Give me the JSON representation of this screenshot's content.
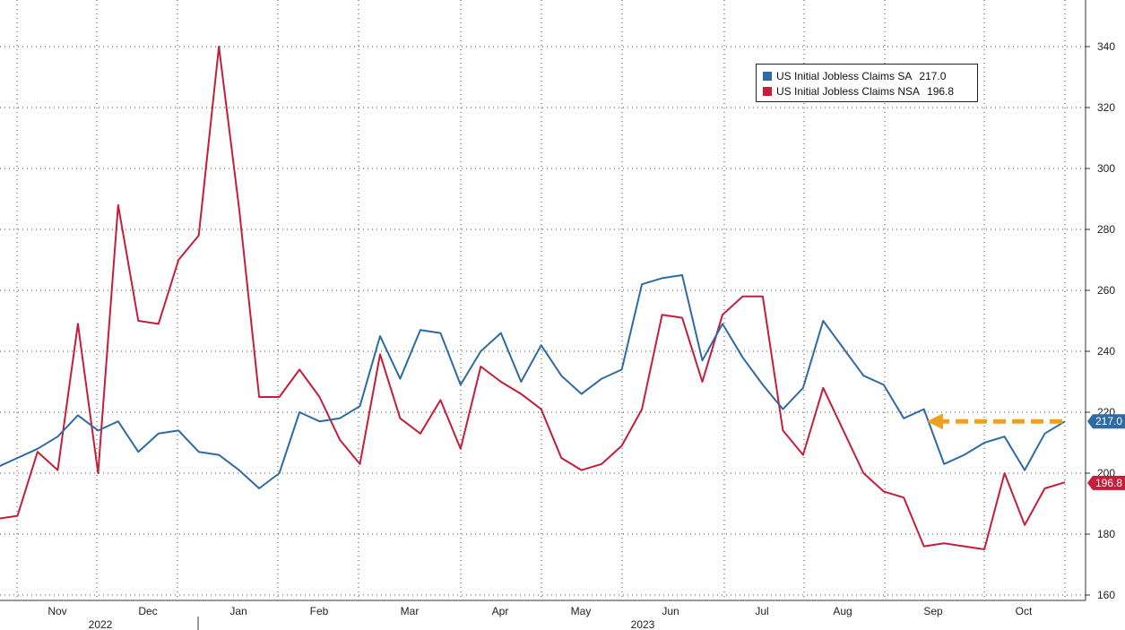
{
  "chart_data": {
    "type": "line",
    "x_axis": {
      "month_labels": [
        "Nov",
        "Dec",
        "Jan",
        "Feb",
        "Mar",
        "Apr",
        "May",
        "Jun",
        "Jul",
        "Aug",
        "Sep",
        "Oct"
      ],
      "year_labels": [
        "2022",
        "2023"
      ]
    },
    "y_axis": {
      "ylim": [
        158,
        355
      ],
      "ticks": [
        160,
        180,
        200,
        220,
        240,
        260,
        280,
        300,
        320,
        340
      ],
      "position": "right"
    },
    "grid": true,
    "legend_position": "top-right",
    "series": [
      {
        "name": "US Initial Jobless Claims SA",
        "last_value": "217.0",
        "color": "#2e6aa3",
        "values": [
          202,
          205,
          208,
          212,
          219,
          214,
          217,
          207,
          213,
          214,
          207,
          206,
          201,
          195,
          200,
          220,
          217,
          218,
          222,
          245,
          231,
          247,
          246,
          229,
          240,
          246,
          230,
          242,
          232,
          226,
          231,
          234,
          262,
          264,
          265,
          237,
          249,
          238,
          229,
          221,
          228,
          250,
          241,
          232,
          229,
          218,
          221,
          203,
          206,
          210,
          212,
          201,
          213,
          217
        ]
      },
      {
        "name": "US Initial Jobless Claims NSA",
        "last_value": "196.8",
        "color": "#c41e3a",
        "values": [
          185,
          186,
          207,
          201,
          249,
          200,
          288,
          250,
          249,
          270,
          278,
          340,
          287,
          225,
          225,
          234,
          225,
          211,
          203,
          239,
          218,
          213,
          224,
          208,
          235,
          230,
          226,
          221,
          205,
          201,
          203,
          209,
          221,
          252,
          251,
          230,
          252,
          258,
          258,
          214,
          206,
          228,
          214,
          200,
          194,
          192,
          176,
          177,
          176,
          175,
          200,
          183,
          195,
          197
        ]
      }
    ],
    "annotation": {
      "type": "dashed-arrow",
      "color": "#f0a020",
      "from_value": 217,
      "to_value": 217
    }
  }
}
